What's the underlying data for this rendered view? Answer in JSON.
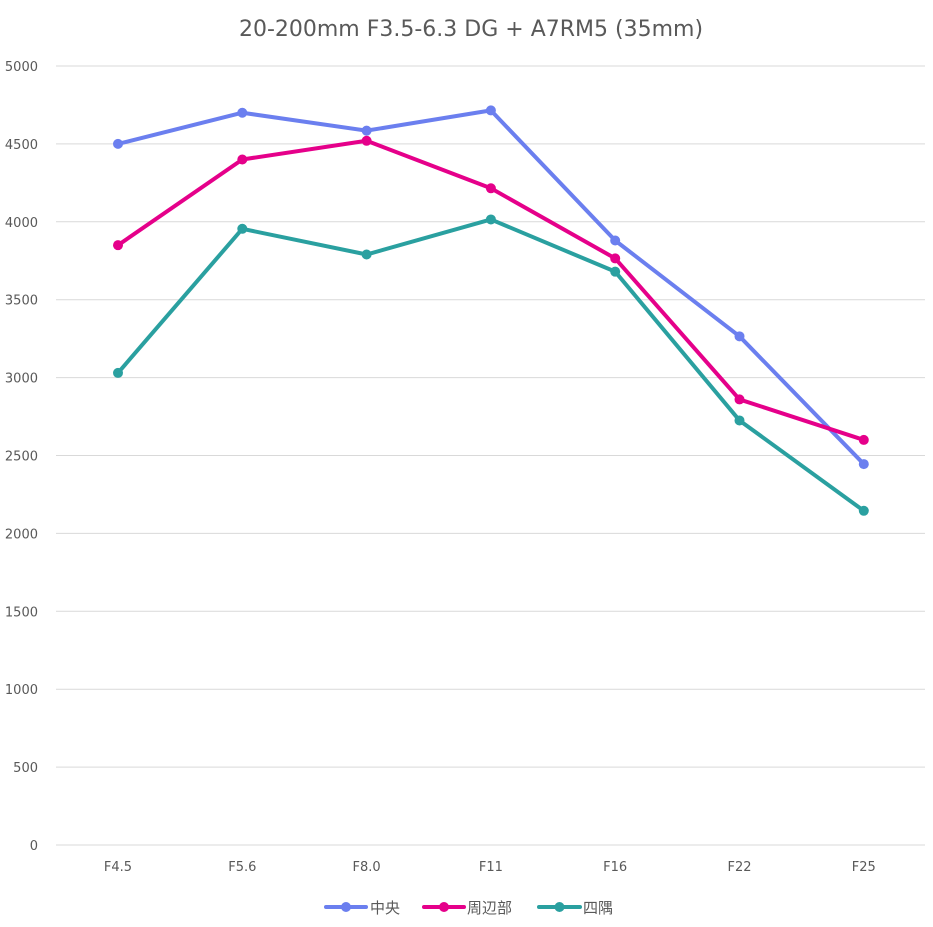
{
  "chart_data": {
    "type": "line",
    "title": "20-200mm F3.5-6.3 DG + A7RM5 (35mm)",
    "xlabel": "",
    "ylabel": "",
    "categories": [
      "F4.5",
      "F5.6",
      "F8.0",
      "F11",
      "F16",
      "F22",
      "F25"
    ],
    "ylim": [
      0,
      5000
    ],
    "yticks": [
      "0",
      "500",
      "1000",
      "1500",
      "2000",
      "2500",
      "3000",
      "3500",
      "4000",
      "4500",
      "5000"
    ],
    "ytick_values": [
      0,
      500,
      1000,
      1500,
      2000,
      2500,
      3000,
      3500,
      4000,
      4500,
      5000
    ],
    "grid": true,
    "legend_position": "bottom",
    "series": [
      {
        "name": "中央",
        "color": "#6B7FEF",
        "values": [
          4500,
          4700,
          4585,
          4715,
          3880,
          3265,
          2445
        ]
      },
      {
        "name": "周辺部",
        "color": "#E5008A",
        "values": [
          3850,
          4400,
          4520,
          4215,
          3765,
          2860,
          2600
        ]
      },
      {
        "name": "四隅",
        "color": "#2AA0A0",
        "values": [
          3030,
          3955,
          3790,
          4015,
          3680,
          2725,
          2145
        ]
      }
    ]
  }
}
